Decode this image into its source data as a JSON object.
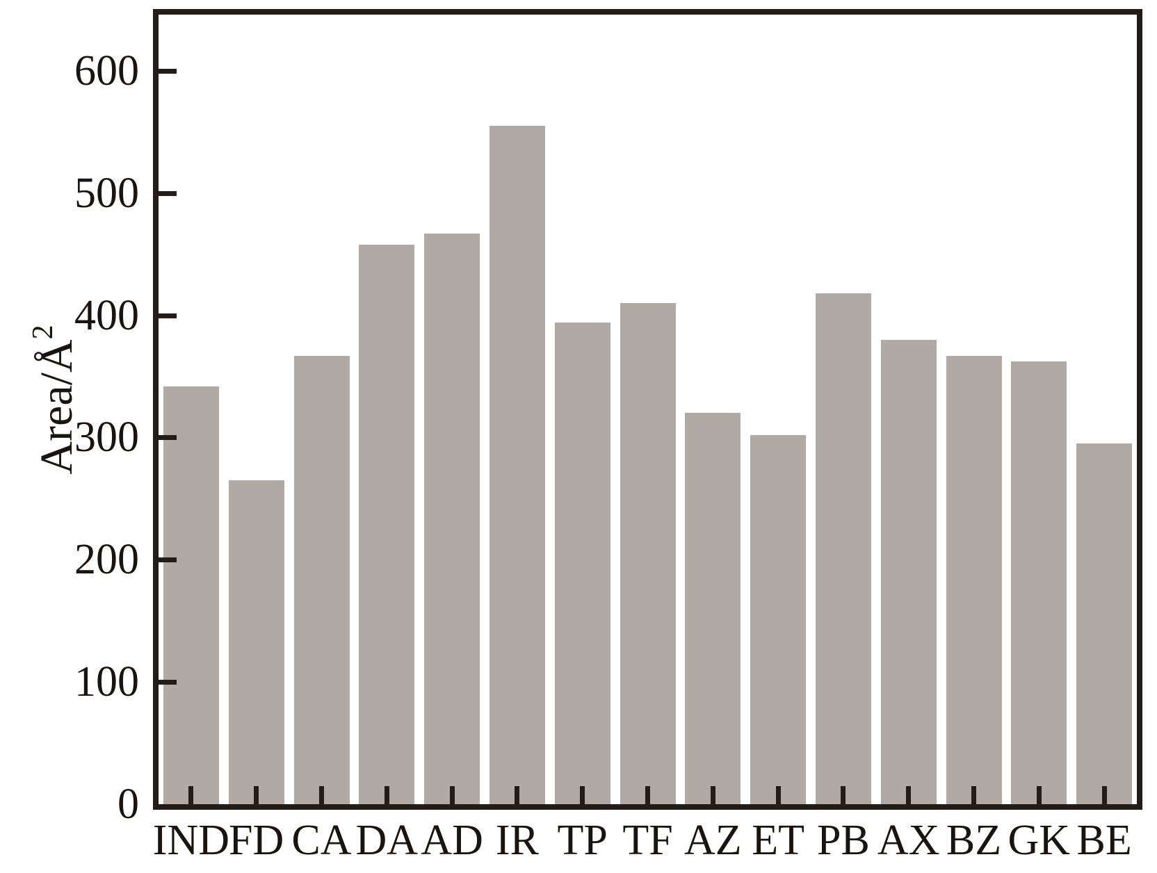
{
  "chart_data": {
    "type": "bar",
    "title": "",
    "xlabel": "",
    "ylabel": "Area/Å²",
    "ylabel_text": "Area/Å",
    "ylabel_sup": "2",
    "categories": [
      "IND",
      "FD",
      "CA",
      "DA",
      "AD",
      "IR",
      "TP",
      "TF",
      "AZ",
      "ET",
      "PB",
      "AX",
      "BZ",
      "GK",
      "BE"
    ],
    "values": [
      342,
      265,
      367,
      458,
      467,
      555,
      394,
      410,
      320,
      302,
      418,
      380,
      367,
      362,
      295
    ],
    "yticks": [
      0,
      100,
      200,
      300,
      400,
      500,
      600
    ],
    "ylim": [
      0,
      646
    ],
    "grid": false,
    "legend": "none",
    "bar_color": "#b1a9a4",
    "axis_color": "#231c17",
    "text_color": "#1a1410",
    "background_color": "#ffffff"
  }
}
